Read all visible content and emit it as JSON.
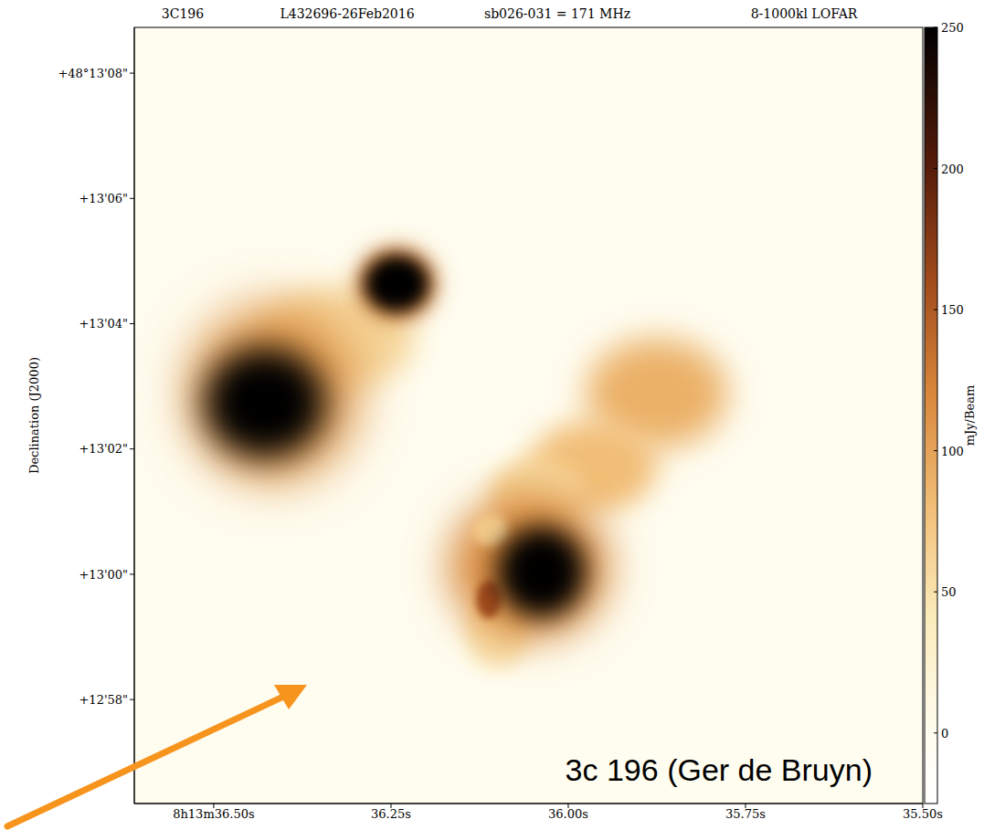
{
  "chart_data": {
    "type": "image",
    "title": "3C196",
    "header": [
      "L432696-26Feb2016",
      "sb026-031 = 171 MHz",
      "8-1000kl LOFAR"
    ],
    "ylabel": "Declination (J2000)",
    "annotations": [
      "3c 196 (Ger de Bruyn)"
    ],
    "xlim": [
      36.612,
      35.5
    ],
    "xticks": [
      {
        "value": 36.5,
        "label": "8h13m36.50s"
      },
      {
        "value": 36.25,
        "label": "36.25s"
      },
      {
        "value": 36.0,
        "label": "36.00s"
      },
      {
        "value": 35.75,
        "label": "35.75s"
      },
      {
        "value": 35.5,
        "label": "35.50s"
      }
    ],
    "ylim": [
      56.34,
      68.73
    ],
    "yticks": [
      {
        "value": 58,
        "label": "+12'58\""
      },
      {
        "value": 60,
        "label": "+13'00\""
      },
      {
        "value": 62,
        "label": "+13'02\""
      },
      {
        "value": 64,
        "label": "+13'04\""
      },
      {
        "value": 66,
        "label": "+13'06\""
      },
      {
        "value": 68,
        "label": "+48°13'08\""
      }
    ],
    "background_level": 0,
    "colorbar": {
      "label": "mJy/Beam",
      "range": [
        -25,
        250
      ],
      "ticks": [
        0,
        50,
        100,
        150,
        200,
        250
      ]
    },
    "sources": [
      {
        "ra": 36.326,
        "dec": 63.77,
        "ra_size": 0.22,
        "dec_size": 1.6,
        "peak": 60
      },
      {
        "ra": 35.875,
        "dec": 62.89,
        "ra_size": 0.2,
        "dec_size": 1.75,
        "peak": 90
      },
      {
        "ra": 35.965,
        "dec": 61.72,
        "ra_size": 0.18,
        "dec_size": 1.45,
        "peak": 80
      },
      {
        "ra": 36.044,
        "dec": 61.28,
        "ra_size": 0.135,
        "dec_size": 1.15,
        "peak": 60
      },
      {
        "ra": 36.1,
        "dec": 59.09,
        "ra_size": 0.09,
        "dec_size": 1.2,
        "peak": 50
      },
      {
        "ra": 36.416,
        "dec": 62.89,
        "ra_size": 0.24,
        "dec_size": 2.8,
        "peak": 110
      },
      {
        "ra": 36.242,
        "dec": 64.64,
        "ra_size": 0.113,
        "dec_size": 1.17,
        "peak": 130
      },
      {
        "ra": 36.055,
        "dec": 60.12,
        "ra_size": 0.225,
        "dec_size": 2.3,
        "peak": 120
      },
      {
        "ra": 36.11,
        "dec": 60.7,
        "ra_size": 0.05,
        "dec_size": 0.5,
        "peak": 70
      },
      {
        "ra": 36.112,
        "dec": 59.6,
        "ra_size": 0.035,
        "dec_size": 0.6,
        "peak": 160
      },
      {
        "ra": 36.428,
        "dec": 62.74,
        "ra_size": 0.17,
        "dec_size": 1.75,
        "peak": 250
      },
      {
        "ra": 36.242,
        "dec": 64.64,
        "ra_size": 0.09,
        "dec_size": 0.9,
        "peak": 250
      },
      {
        "ra": 36.038,
        "dec": 60.04,
        "ra_size": 0.124,
        "dec_size": 1.45,
        "peak": 250
      }
    ]
  }
}
